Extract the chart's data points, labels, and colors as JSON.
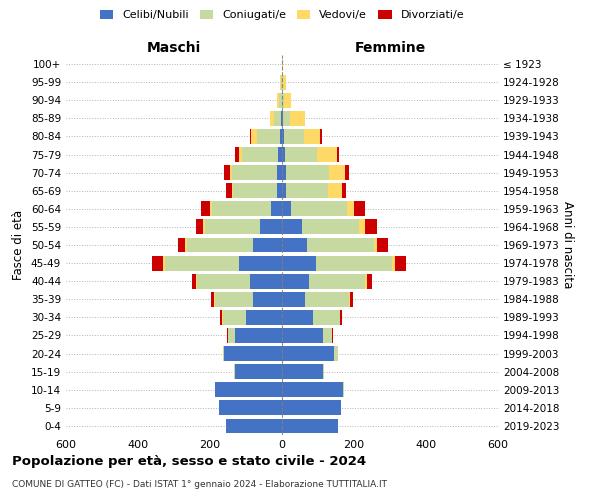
{
  "age_groups": [
    "0-4",
    "5-9",
    "10-14",
    "15-19",
    "20-24",
    "25-29",
    "30-34",
    "35-39",
    "40-44",
    "45-49",
    "50-54",
    "55-59",
    "60-64",
    "65-69",
    "70-74",
    "75-79",
    "80-84",
    "85-89",
    "90-94",
    "95-99",
    "100+"
  ],
  "birth_years": [
    "2019-2023",
    "2014-2018",
    "2009-2013",
    "2004-2008",
    "1999-2003",
    "1994-1998",
    "1989-1993",
    "1984-1988",
    "1979-1983",
    "1974-1978",
    "1969-1973",
    "1964-1968",
    "1959-1963",
    "1954-1958",
    "1949-1953",
    "1944-1948",
    "1939-1943",
    "1934-1938",
    "1929-1933",
    "1924-1928",
    "≤ 1923"
  ],
  "maschi": {
    "celibi": [
      155,
      175,
      185,
      130,
      160,
      130,
      100,
      80,
      90,
      120,
      80,
      60,
      30,
      15,
      15,
      10,
      5,
      2,
      0,
      0,
      0
    ],
    "coniugati": [
      0,
      0,
      2,
      2,
      5,
      20,
      65,
      105,
      145,
      205,
      185,
      155,
      165,
      120,
      125,
      100,
      65,
      20,
      8,
      3,
      0
    ],
    "vedovi": [
      0,
      0,
      0,
      0,
      0,
      0,
      2,
      3,
      5,
      5,
      5,
      5,
      5,
      5,
      5,
      10,
      15,
      10,
      5,
      2,
      0
    ],
    "divorziati": [
      0,
      0,
      0,
      0,
      0,
      2,
      5,
      10,
      10,
      30,
      20,
      20,
      25,
      15,
      15,
      10,
      5,
      0,
      0,
      0,
      0
    ]
  },
  "femmine": {
    "nubili": [
      155,
      165,
      170,
      115,
      145,
      115,
      85,
      65,
      75,
      95,
      70,
      55,
      25,
      12,
      10,
      8,
      5,
      3,
      0,
      0,
      0
    ],
    "coniugate": [
      0,
      0,
      2,
      3,
      10,
      25,
      75,
      120,
      155,
      210,
      185,
      160,
      155,
      115,
      120,
      90,
      55,
      20,
      5,
      2,
      0
    ],
    "vedove": [
      0,
      0,
      0,
      0,
      0,
      0,
      2,
      3,
      5,
      10,
      10,
      15,
      20,
      40,
      45,
      55,
      45,
      40,
      20,
      8,
      2
    ],
    "divorziate": [
      0,
      0,
      0,
      0,
      0,
      2,
      5,
      10,
      15,
      30,
      30,
      35,
      30,
      10,
      10,
      5,
      5,
      0,
      0,
      0,
      0
    ]
  },
  "colors": {
    "celibi": "#4472C4",
    "coniugati": "#C5D9A0",
    "vedovi": "#FFD966",
    "divorziati": "#CC0000"
  },
  "xlim": 600,
  "title": "Popolazione per età, sesso e stato civile - 2024",
  "subtitle": "COMUNE DI GATTEO (FC) - Dati ISTAT 1° gennaio 2024 - Elaborazione TUTTITALIA.IT",
  "ylabel_left": "Fasce di età",
  "ylabel_right": "Anni di nascita"
}
